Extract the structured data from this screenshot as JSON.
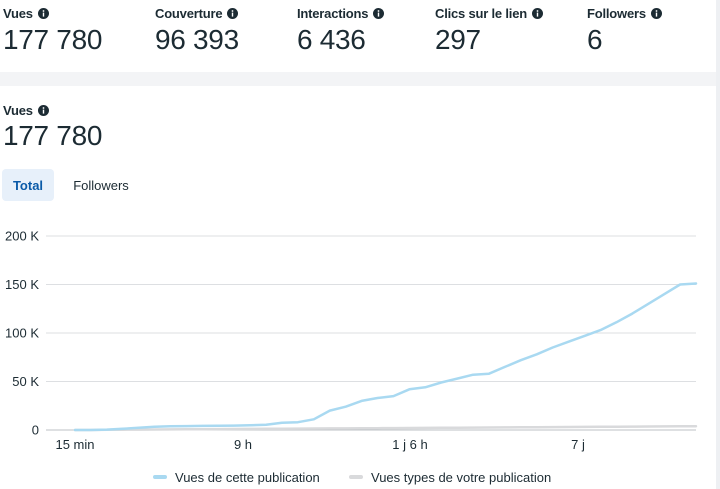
{
  "stats": [
    {
      "label": "Vues",
      "value": "177 780"
    },
    {
      "label": "Couverture",
      "value": "96 393"
    },
    {
      "label": "Interactions",
      "value": "6 436"
    },
    {
      "label": "Clics sur le lien",
      "value": "297"
    },
    {
      "label": "Followers",
      "value": "6"
    }
  ],
  "section": {
    "label": "Vues",
    "value": "177 780"
  },
  "tabs": {
    "total": "Total",
    "followers": "Followers"
  },
  "legend": {
    "series1": "Vues de cette publication",
    "series2": "Vues types de votre publication"
  },
  "colors": {
    "series1": "#a9d9f1",
    "series2": "#d9dadc",
    "grid": "#dddfe2",
    "accent": "#0a5aa8"
  },
  "chart_data": {
    "type": "line",
    "y_ticks": [
      "0",
      "50 K",
      "100 K",
      "150 K",
      "200 K"
    ],
    "x_labels": [
      "15 min",
      "9 h",
      "1 j 6 h",
      "7 j"
    ],
    "ylim": [
      0,
      200000
    ],
    "series": [
      {
        "name": "Vues de cette publication",
        "color": "#a9d9f1",
        "values": [
          0,
          0,
          400,
          1200,
          2300,
          3300,
          3800,
          4000,
          4200,
          4300,
          4500,
          4800,
          5500,
          7500,
          8000,
          11000,
          20000,
          24000,
          30000,
          33000,
          35000,
          42000,
          44000,
          49000,
          53000,
          57000,
          58000,
          65000,
          72000,
          78000,
          85000,
          91000,
          97000,
          103000,
          111000,
          120000,
          130000,
          140000,
          150000,
          151000
        ]
      },
      {
        "name": "Vues types de votre publication",
        "color": "#d9dadc",
        "values": [
          0,
          0,
          200,
          300,
          400,
          500,
          600,
          700,
          800,
          900,
          1000,
          1100,
          1200,
          1300,
          1400,
          1500,
          1600,
          1700,
          1800,
          1900,
          2000,
          2100,
          2200,
          2300,
          2400,
          2500,
          2600,
          2700,
          2800,
          2900,
          3000,
          3100,
          3200,
          3300,
          3400,
          3500,
          3600,
          3700,
          3800,
          3900
        ]
      }
    ]
  }
}
